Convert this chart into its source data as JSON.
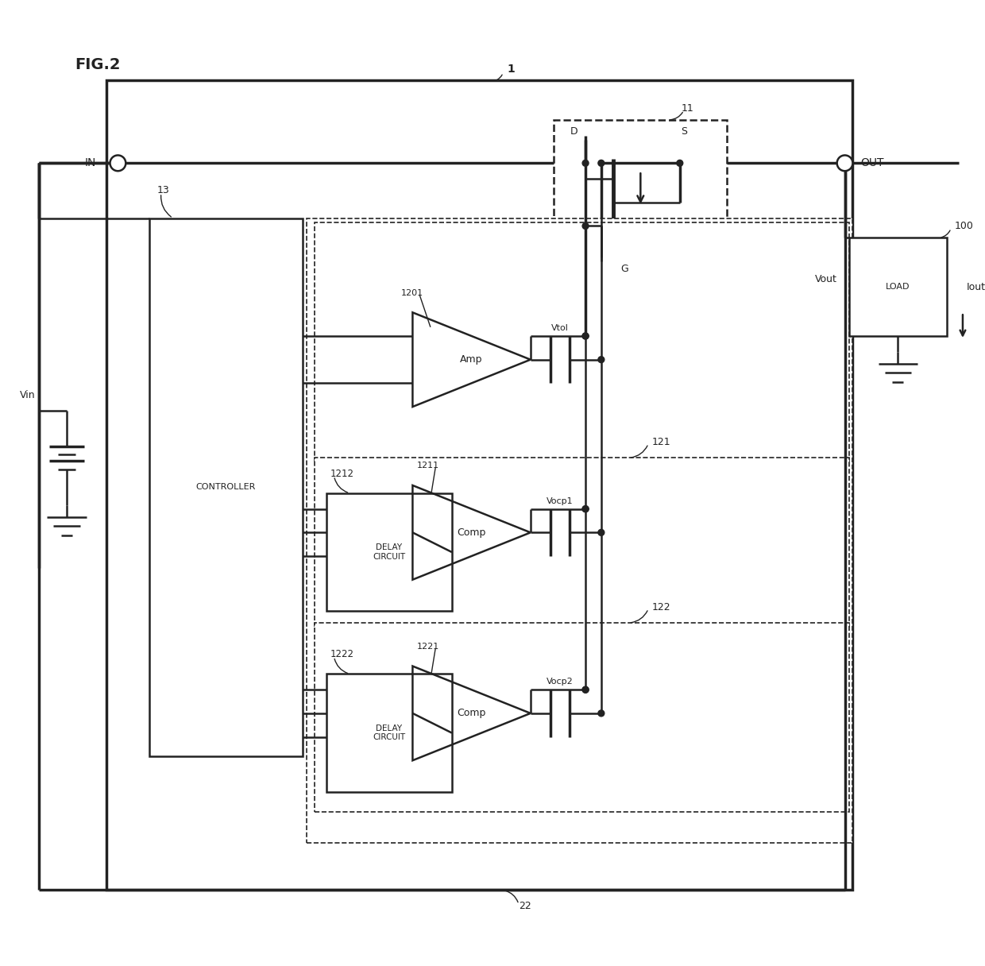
{
  "bg_color": "#ffffff",
  "line_color": "#222222",
  "fig_width": 12.4,
  "fig_height": 12.16,
  "labels": {
    "fig_title": "FIG.2",
    "in_label": "IN",
    "out_label": "OUT",
    "vin_label": "Vin",
    "vout_label": "Vout",
    "iout_label": "Iout",
    "load_label": "LOAD",
    "controller_label": "CONTROLLER",
    "amp_label": "Amp",
    "amp_ref": "1201",
    "vtol_label": "Vtol",
    "comp1_label": "Comp",
    "comp1_ref": "1211",
    "vocp1_label": "Vocp1",
    "delay1_label": "DELAY\nCIRCUIT",
    "delay1_ref": "1212",
    "comp2_label": "Comp",
    "comp2_ref": "1221",
    "vocp2_label": "Vocp2",
    "delay2_label": "DELAY\nCIRCUIT",
    "delay2_ref": "1222",
    "mosfet_ref": "11",
    "mosfet_d": "D",
    "mosfet_s": "S",
    "mosfet_g": "G",
    "ic_ref": "1",
    "ic12_ref": "13",
    "block121_ref": "121",
    "block122_ref": "122",
    "block22_ref": "22",
    "ref100": "100"
  }
}
